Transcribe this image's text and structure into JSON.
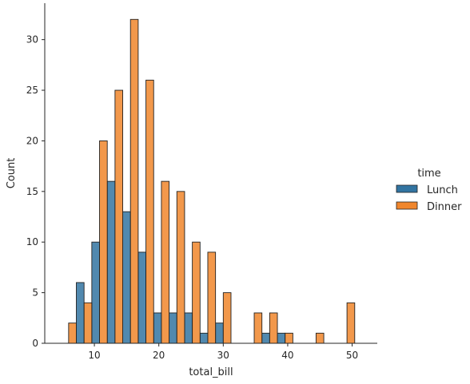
{
  "chart_data": {
    "type": "bar",
    "title": "",
    "xlabel": "total_bill",
    "ylabel": "Count",
    "xlim": [
      2.3,
      53.9
    ],
    "ylim": [
      0,
      33.6
    ],
    "bin_width": 2.4,
    "bin_starts": [
      4.8,
      7.2,
      9.6,
      12.0,
      14.4,
      16.8,
      19.2,
      21.6,
      24.0,
      26.4,
      28.8,
      31.2,
      33.6,
      36.0,
      38.4,
      40.8,
      43.2,
      45.6,
      48.0
    ],
    "x_ticks": [
      10,
      20,
      30,
      40,
      50
    ],
    "y_ticks": [
      0,
      5,
      10,
      15,
      20,
      25,
      30
    ],
    "series": [
      {
        "name": "Lunch",
        "color": "#3274a1",
        "values": [
          0,
          6,
          10,
          16,
          13,
          9,
          3,
          3,
          3,
          1,
          2,
          0,
          0,
          1,
          1,
          0,
          0,
          0,
          0
        ]
      },
      {
        "name": "Dinner",
        "color": "#f0862c",
        "values": [
          2,
          4,
          20,
          25,
          32,
          26,
          16,
          15,
          10,
          9,
          5,
          0,
          3,
          3,
          1,
          0,
          1,
          0,
          4
        ]
      }
    ],
    "legend": {
      "title": "time",
      "placement": "right"
    },
    "grid": false
  }
}
